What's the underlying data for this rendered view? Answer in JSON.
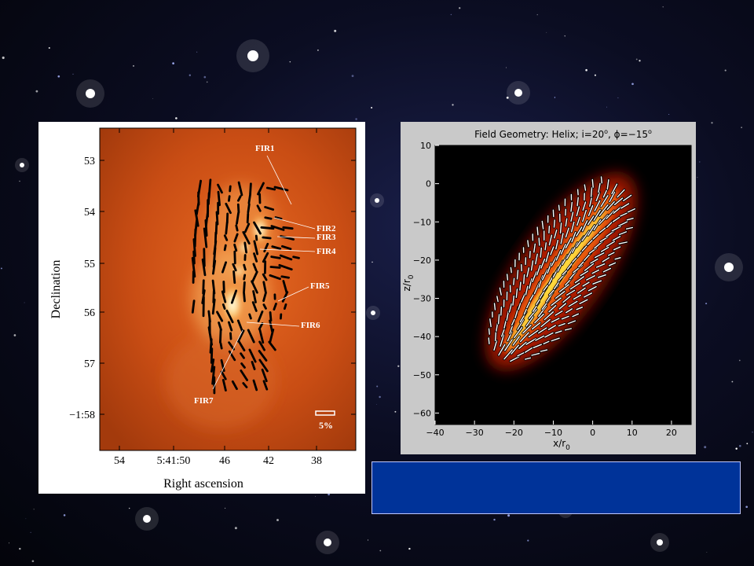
{
  "colors": {
    "caption_box": "#003399",
    "vector_left": "#000000",
    "vector_right": "#ffffff",
    "label_left": "#ffffff"
  },
  "left_figure": {
    "chart_data": {
      "type": "heatmap",
      "subtype": "polarization vector map",
      "xlabel": "Right ascension",
      "ylabel": "Declination",
      "xticks": [
        "54",
        "5:41:50",
        "46",
        "42",
        "38"
      ],
      "yticks": [
        "53",
        "54",
        "55",
        "56",
        "57",
        "−1:58"
      ],
      "sources": [
        "FIR1",
        "FIR2",
        "FIR3",
        "FIR4",
        "FIR5",
        "FIR6",
        "FIR7"
      ],
      "scale_bar_label": "5%"
    }
  },
  "right_figure": {
    "chart_data": {
      "type": "heatmap",
      "subtype": "model polarization vectors",
      "title_prefix": "Field Geometry: Helix; i=20",
      "title_deg": "o",
      "title_mid": ", ϕ=−15",
      "xlabel": "x/r",
      "xlabel_sub": "0",
      "ylabel": "z/r",
      "ylabel_sub": "0",
      "xlim": [
        -40,
        25
      ],
      "ylim": [
        -63,
        10
      ],
      "xticks": [
        -40,
        -30,
        -20,
        -10,
        0,
        10,
        20
      ],
      "yticks": [
        10,
        0,
        -10,
        -20,
        -30,
        -40,
        -50,
        -60
      ]
    }
  },
  "caption": {
    "text": ""
  }
}
